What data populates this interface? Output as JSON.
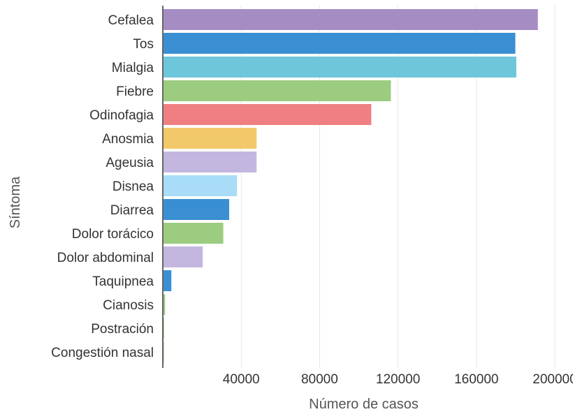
{
  "chart_data": {
    "type": "bar",
    "orientation": "horizontal",
    "xlabel": "Número de casos",
    "ylabel": "Síntoma",
    "xlim": [
      0,
      205000
    ],
    "ticks": [
      40000,
      80000,
      120000,
      160000,
      200000
    ],
    "tick_labels": [
      "40000",
      "80000",
      "120000",
      "160000",
      "200000"
    ],
    "grid": true,
    "categories": [
      "Cefalea",
      "Tos",
      "Mialgia",
      "Fiebre",
      "Odinofagia",
      "Anosmia",
      "Ageusia",
      "Disnea",
      "Diarrea",
      "Dolor torácico",
      "Dolor abdominal",
      "Taquipnea",
      "Cianosis",
      "Postración",
      "Congestión nasal"
    ],
    "values": [
      191000,
      179500,
      180000,
      116000,
      106000,
      47500,
      47500,
      37500,
      33500,
      30500,
      20000,
      4000,
      800,
      300,
      200
    ],
    "colors": [
      "#a58dc4",
      "#3a8fd2",
      "#6ec6da",
      "#9ccc80",
      "#ef7f81",
      "#f2c96a",
      "#c3b7df",
      "#a9dcf7",
      "#3a8fd2",
      "#9ccc80",
      "#c3b7df",
      "#3a8fd2",
      "#9ccc80",
      "#9ccc80",
      "#9ccc80"
    ]
  }
}
